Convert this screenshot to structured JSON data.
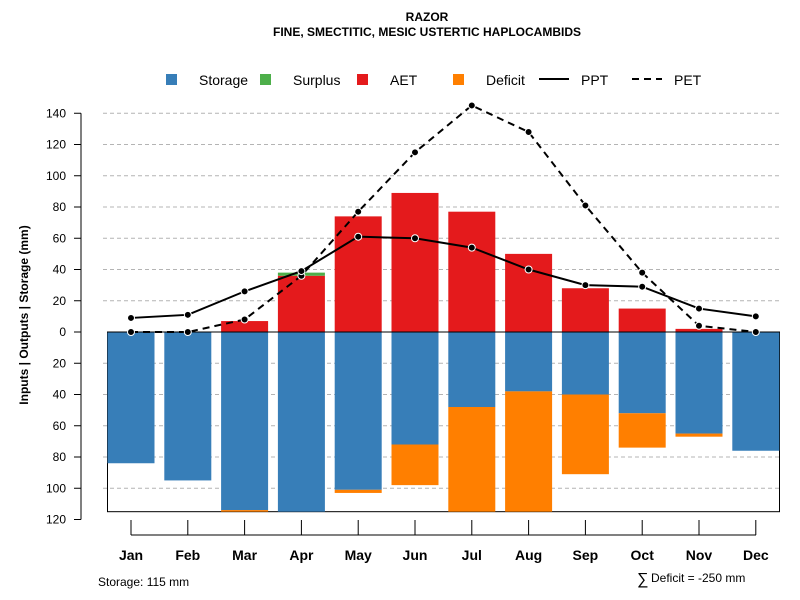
{
  "chart_data": {
    "type": "bar",
    "title": "RAZOR",
    "subtitle": "FINE, SMECTITIC, MESIC USTERTIC HAPLOCAMBIDS",
    "ylabel": "Inputs | Outputs | Storage    (mm)",
    "categories": [
      "Jan",
      "Feb",
      "Mar",
      "Apr",
      "May",
      "Jun",
      "Jul",
      "Aug",
      "Sep",
      "Oct",
      "Nov",
      "Dec"
    ],
    "ylim": [
      -120,
      150
    ],
    "yticks": [
      140,
      120,
      100,
      80,
      60,
      40,
      20,
      0,
      -20,
      -40,
      -60,
      -80,
      -100,
      -120
    ],
    "ytick_labels": [
      "140",
      "120",
      "100",
      "80",
      "60",
      "40",
      "20",
      "0",
      "20",
      "40",
      "60",
      "80",
      "100",
      "120"
    ],
    "storage_capacity": 115,
    "series": [
      {
        "name": "Storage",
        "color": "#377EB8",
        "values": [
          84,
          95,
          114,
          115,
          101,
          72,
          48,
          38,
          40,
          52,
          65,
          76
        ]
      },
      {
        "name": "Surplus",
        "color": "#4DAF4A",
        "values": [
          0,
          0,
          0,
          2,
          0,
          0,
          0,
          0,
          0,
          0,
          0,
          0
        ]
      },
      {
        "name": "AET",
        "color": "#E41A1C",
        "values": [
          0,
          0,
          7,
          36,
          74,
          89,
          77,
          50,
          28,
          15,
          2,
          0
        ]
      },
      {
        "name": "Deficit",
        "color": "#FF7F00",
        "values": [
          0,
          0,
          1,
          0,
          2,
          26,
          67,
          77,
          51,
          22,
          2,
          0
        ]
      },
      {
        "name": "PPT",
        "color": "#000000",
        "style": "solid",
        "values": [
          9,
          11,
          26,
          39,
          61,
          60,
          54,
          40,
          30,
          29,
          15,
          10
        ]
      },
      {
        "name": "PET",
        "color": "#000000",
        "style": "dashed",
        "values": [
          0,
          0,
          8,
          36,
          77,
          115,
          145,
          128,
          81,
          38,
          4,
          0
        ]
      }
    ],
    "legend": [
      "Storage",
      "Surplus",
      "AET",
      "Deficit",
      "PPT",
      "PET"
    ],
    "legend_position": "top",
    "grid": true
  },
  "footer": {
    "storage_text": "Storage: 115 mm",
    "deficit_symbol": "∑",
    "deficit_text": "Deficit = -250 mm"
  }
}
